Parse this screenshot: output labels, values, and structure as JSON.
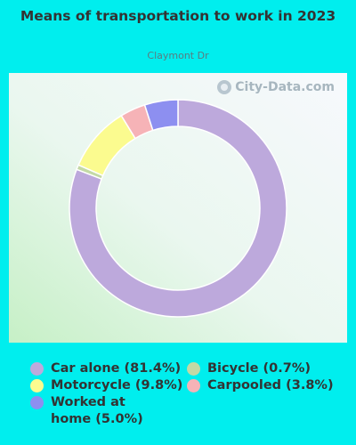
{
  "title": "Means of transportation to work in 2023",
  "subtitle": "Claymont Dr",
  "watermark": "City-Data.com",
  "colors": {
    "background": "#00eeee"
  },
  "chart_data": {
    "type": "pie",
    "variant": "donut",
    "title": "Means of transportation to work in 2023",
    "subtitle": "Claymont Dr",
    "legend_placement": "bottom",
    "slices": [
      {
        "label": "Car alone",
        "value": 81.4,
        "legend": "Car alone (81.4%)",
        "color": "#bda9dc"
      },
      {
        "label": "Bicycle",
        "value": 0.7,
        "legend": "Bicycle (0.7%)",
        "color": "#c3d9a5"
      },
      {
        "label": "Motorcycle",
        "value": 9.8,
        "legend": "Motorcycle (9.8%)",
        "color": "#fbfb8f"
      },
      {
        "label": "Carpooled",
        "value": 3.8,
        "legend": "Carpooled (3.8%)",
        "color": "#f6b3b7"
      },
      {
        "label": "Worked at home",
        "value": 5.0,
        "legend": "Worked at home (5.0%)",
        "color": "#8d8ff0"
      }
    ]
  }
}
